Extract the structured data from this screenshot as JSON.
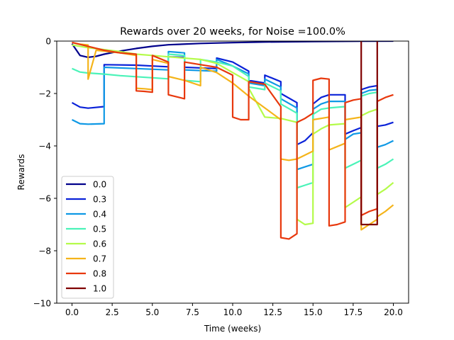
{
  "chart_data": {
    "type": "line",
    "title": "Rewards over 20 weeks, for Noise =100.0%",
    "xlabel": "Time (weeks)",
    "ylabel": "Rewards",
    "xlim": [
      -0.95,
      20.95
    ],
    "ylim": [
      -10,
      0
    ],
    "xticks": [
      0,
      2.5,
      5,
      7.5,
      10,
      12.5,
      15,
      17.5,
      20
    ],
    "xtick_labels": [
      "0.0",
      "2.5",
      "5.0",
      "7.5",
      "10.0",
      "12.5",
      "15.0",
      "17.5",
      "20.0"
    ],
    "yticks": [
      0,
      -2,
      -4,
      -6,
      -8,
      -10
    ],
    "ytick_labels": [
      "0",
      "−2",
      "−4",
      "−6",
      "−8",
      "−10"
    ],
    "grid": false,
    "legend_position": "lower-left",
    "series": [
      {
        "name": "0.0",
        "color": "#00008b",
        "points": [
          [
            0,
            -0.1
          ],
          [
            0.5,
            -0.55
          ],
          [
            1,
            -0.62
          ],
          [
            1.5,
            -0.58
          ],
          [
            2,
            -0.5
          ],
          [
            3,
            -0.38
          ],
          [
            4,
            -0.28
          ],
          [
            5,
            -0.2
          ],
          [
            6,
            -0.14
          ],
          [
            8,
            -0.09
          ],
          [
            10,
            -0.06
          ],
          [
            12,
            -0.035
          ],
          [
            15,
            -0.015
          ],
          [
            18,
            -0.005
          ],
          [
            20,
            0
          ]
        ]
      },
      {
        "name": "0.3",
        "color": "#0a22d8",
        "points": [
          [
            0,
            -2.35
          ],
          [
            0.5,
            -2.52
          ],
          [
            1,
            -2.56
          ],
          [
            2,
            -2.5
          ],
          [
            2,
            -0.9
          ],
          [
            4,
            -0.92
          ],
          [
            5,
            -0.95
          ],
          [
            6,
            -0.98
          ],
          [
            6,
            -0.6
          ],
          [
            7,
            -0.62
          ],
          [
            7,
            -1.0
          ],
          [
            9,
            -1.05
          ],
          [
            9,
            -0.65
          ],
          [
            10,
            -0.8
          ],
          [
            11,
            -1.15
          ],
          [
            11,
            -1.5
          ],
          [
            12,
            -1.6
          ],
          [
            12,
            -1.3
          ],
          [
            13,
            -1.55
          ],
          [
            13,
            -2.0
          ],
          [
            14,
            -2.35
          ],
          [
            14,
            -3.95
          ],
          [
            14.5,
            -3.8
          ],
          [
            15,
            -3.5
          ],
          [
            15,
            -2.4
          ],
          [
            15.5,
            -2.15
          ],
          [
            16,
            -2.05
          ],
          [
            17,
            -2.05
          ],
          [
            17,
            -3.55
          ],
          [
            17.5,
            -3.42
          ],
          [
            18,
            -3.3
          ],
          [
            18,
            -1.85
          ],
          [
            18.5,
            -1.75
          ],
          [
            19,
            -1.7
          ],
          [
            19,
            -3.25
          ],
          [
            19.5,
            -3.2
          ],
          [
            20,
            -3.1
          ]
        ]
      },
      {
        "name": "0.4",
        "color": "#0f99e5",
        "points": [
          [
            0,
            -3.0
          ],
          [
            0.5,
            -3.15
          ],
          [
            1,
            -3.17
          ],
          [
            2,
            -3.15
          ],
          [
            2,
            -1.0
          ],
          [
            4,
            -1.05
          ],
          [
            6,
            -1.1
          ],
          [
            6,
            -0.4
          ],
          [
            7,
            -0.45
          ],
          [
            7,
            -1.1
          ],
          [
            9,
            -1.15
          ],
          [
            9,
            -0.7
          ],
          [
            10,
            -0.95
          ],
          [
            11,
            -1.25
          ],
          [
            11,
            -1.6
          ],
          [
            12,
            -1.7
          ],
          [
            12,
            -1.45
          ],
          [
            13,
            -1.75
          ],
          [
            13,
            -2.2
          ],
          [
            14,
            -2.55
          ],
          [
            14,
            -4.9
          ],
          [
            14.5,
            -4.8
          ],
          [
            15,
            -4.7
          ],
          [
            15,
            -2.6
          ],
          [
            15.5,
            -2.4
          ],
          [
            16,
            -2.3
          ],
          [
            17,
            -2.3
          ],
          [
            17,
            -3.75
          ],
          [
            17.5,
            -3.55
          ],
          [
            18,
            -3.5
          ],
          [
            18,
            -2.0
          ],
          [
            18.5,
            -1.88
          ],
          [
            19,
            -1.85
          ],
          [
            19,
            -4.05
          ],
          [
            19.5,
            -3.95
          ],
          [
            20,
            -3.8
          ]
        ]
      },
      {
        "name": "0.5",
        "color": "#4af3b8",
        "points": [
          [
            0,
            -1.05
          ],
          [
            0.5,
            -1.18
          ],
          [
            1,
            -1.22
          ],
          [
            2,
            -1.26
          ],
          [
            3,
            -1.32
          ],
          [
            4,
            -1.36
          ],
          [
            5,
            -1.4
          ],
          [
            6,
            -1.44
          ],
          [
            6,
            -0.5
          ],
          [
            7,
            -0.55
          ],
          [
            7,
            -1.5
          ],
          [
            8,
            -1.55
          ],
          [
            8,
            -0.7
          ],
          [
            9,
            -0.8
          ],
          [
            10,
            -0.95
          ],
          [
            11,
            -1.35
          ],
          [
            11,
            -1.75
          ],
          [
            12,
            -1.85
          ],
          [
            12,
            -1.6
          ],
          [
            13,
            -1.9
          ],
          [
            13,
            -2.4
          ],
          [
            14,
            -2.75
          ],
          [
            14,
            -5.6
          ],
          [
            14.5,
            -5.5
          ],
          [
            15,
            -5.4
          ],
          [
            15,
            -2.8
          ],
          [
            15.5,
            -2.6
          ],
          [
            16,
            -2.55
          ],
          [
            17,
            -2.5
          ],
          [
            17,
            -4.85
          ],
          [
            17.5,
            -4.7
          ],
          [
            18,
            -4.55
          ],
          [
            18,
            -2.1
          ],
          [
            18.5,
            -2.0
          ],
          [
            19,
            -1.95
          ],
          [
            19,
            -4.85
          ],
          [
            19.5,
            -4.7
          ],
          [
            20,
            -4.5
          ]
        ]
      },
      {
        "name": "0.6",
        "color": "#b4fb4a",
        "points": [
          [
            0,
            -0.15
          ],
          [
            0.5,
            -0.2
          ],
          [
            1,
            -0.25
          ],
          [
            3,
            -0.4
          ],
          [
            4,
            -0.5
          ],
          [
            5,
            -0.55
          ],
          [
            6,
            -0.6
          ],
          [
            8,
            -0.7
          ],
          [
            9,
            -0.85
          ],
          [
            10,
            -1.2
          ],
          [
            11,
            -1.55
          ],
          [
            11,
            -1.8
          ],
          [
            12,
            -2.9
          ],
          [
            13,
            -2.95
          ],
          [
            14,
            -3.1
          ],
          [
            14,
            -6.8
          ],
          [
            14.5,
            -7.0
          ],
          [
            15,
            -6.95
          ],
          [
            15,
            -3.55
          ],
          [
            15.5,
            -3.35
          ],
          [
            16,
            -3.2
          ],
          [
            17,
            -3.15
          ],
          [
            17,
            -6.35
          ],
          [
            17.5,
            -6.15
          ],
          [
            18,
            -5.95
          ],
          [
            18,
            -2.85
          ],
          [
            18.5,
            -2.7
          ],
          [
            19,
            -2.6
          ],
          [
            19,
            -5.85
          ],
          [
            19.5,
            -5.65
          ],
          [
            20,
            -5.4
          ]
        ]
      },
      {
        "name": "0.7",
        "color": "#f5b41a",
        "points": [
          [
            0,
            -0.05
          ],
          [
            0.5,
            -0.12
          ],
          [
            1,
            -0.15
          ],
          [
            1,
            -1.45
          ],
          [
            1.5,
            -0.35
          ],
          [
            2,
            -0.38
          ],
          [
            3,
            -0.45
          ],
          [
            4,
            -0.55
          ],
          [
            4,
            -1.8
          ],
          [
            4.5,
            -1.82
          ],
          [
            5,
            -1.85
          ],
          [
            5,
            -0.7
          ],
          [
            6,
            -0.85
          ],
          [
            6,
            -1.35
          ],
          [
            7,
            -1.5
          ],
          [
            8,
            -1.7
          ],
          [
            8,
            -1.0
          ],
          [
            9,
            -1.2
          ],
          [
            10,
            -1.6
          ],
          [
            11,
            -2.1
          ],
          [
            12,
            -2.55
          ],
          [
            13,
            -3.0
          ],
          [
            13,
            -4.5
          ],
          [
            13.5,
            -4.55
          ],
          [
            14,
            -4.5
          ],
          [
            15,
            -4.2
          ],
          [
            15,
            -3.0
          ],
          [
            16,
            -2.9
          ],
          [
            16,
            -4.15
          ],
          [
            17,
            -3.9
          ],
          [
            17,
            -3.0
          ],
          [
            18,
            -2.9
          ],
          [
            18,
            -7.2
          ],
          [
            18.5,
            -7.0
          ],
          [
            19,
            -6.8
          ],
          [
            19,
            -6.7
          ],
          [
            19.5,
            -6.5
          ],
          [
            20,
            -6.25
          ]
        ]
      },
      {
        "name": "0.8",
        "color": "#e8380d",
        "points": [
          [
            0,
            -0.05
          ],
          [
            1,
            -0.2
          ],
          [
            2,
            -0.35
          ],
          [
            3,
            -0.45
          ],
          [
            4,
            -0.5
          ],
          [
            4,
            -1.9
          ],
          [
            4.5,
            -1.92
          ],
          [
            5,
            -1.95
          ],
          [
            5,
            -0.55
          ],
          [
            6,
            -0.8
          ],
          [
            6,
            -2.05
          ],
          [
            7,
            -2.2
          ],
          [
            7,
            -0.8
          ],
          [
            8,
            -0.9
          ],
          [
            9,
            -1.0
          ],
          [
            10,
            -1.3
          ],
          [
            10,
            -2.9
          ],
          [
            10.5,
            -3.0
          ],
          [
            11,
            -3.0
          ],
          [
            11,
            -1.55
          ],
          [
            12,
            -1.65
          ],
          [
            13,
            -2.5
          ],
          [
            13,
            -7.5
          ],
          [
            13.5,
            -7.55
          ],
          [
            14,
            -7.35
          ],
          [
            14,
            -3.1
          ],
          [
            14.5,
            -2.95
          ],
          [
            15,
            -2.75
          ],
          [
            15,
            -1.5
          ],
          [
            15.5,
            -1.42
          ],
          [
            16,
            -1.45
          ],
          [
            16,
            -7.05
          ],
          [
            16.5,
            -7.0
          ],
          [
            17,
            -6.9
          ],
          [
            17,
            -2.35
          ],
          [
            17.5,
            -2.25
          ],
          [
            18,
            -2.2
          ],
          [
            18,
            -6.65
          ],
          [
            18.5,
            -6.5
          ],
          [
            19,
            -6.4
          ],
          [
            19,
            -2.3
          ],
          [
            19.5,
            -2.15
          ],
          [
            20,
            -2.05
          ]
        ]
      },
      {
        "name": "1.0",
        "color": "#7f0000",
        "points": [
          [
            18,
            0
          ],
          [
            18,
            -7.0
          ],
          [
            19,
            -7.0
          ],
          [
            19,
            0
          ]
        ]
      }
    ]
  }
}
